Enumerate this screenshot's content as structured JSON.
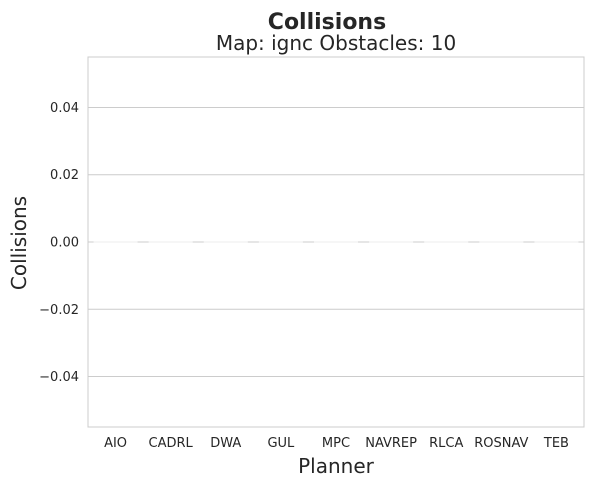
{
  "chart_data": {
    "type": "bar",
    "title": "Collisions",
    "subtitle": "Map: ignc Obstacles: 10",
    "xlabel": "Planner",
    "ylabel": "Collisions",
    "categories": [
      "AIO",
      "CADRL",
      "DWA",
      "GUL",
      "MPC",
      "NAVREP",
      "RLCA",
      "ROSNAV",
      "TEB"
    ],
    "values": [
      0,
      0,
      0,
      0,
      0,
      0,
      0,
      0,
      0
    ],
    "ylim": [
      -0.055,
      0.055
    ],
    "yticks": [
      0.04,
      0.02,
      0.0,
      -0.02,
      -0.04
    ],
    "ytick_labels": [
      "0.04",
      "0.02",
      "0.00",
      "−0.02",
      "−0.04"
    ],
    "grid": "horizontal",
    "colors": {
      "grid": "#cccccc",
      "spine": "#cccccc",
      "bar": "#ececec",
      "text": "#262626"
    }
  }
}
